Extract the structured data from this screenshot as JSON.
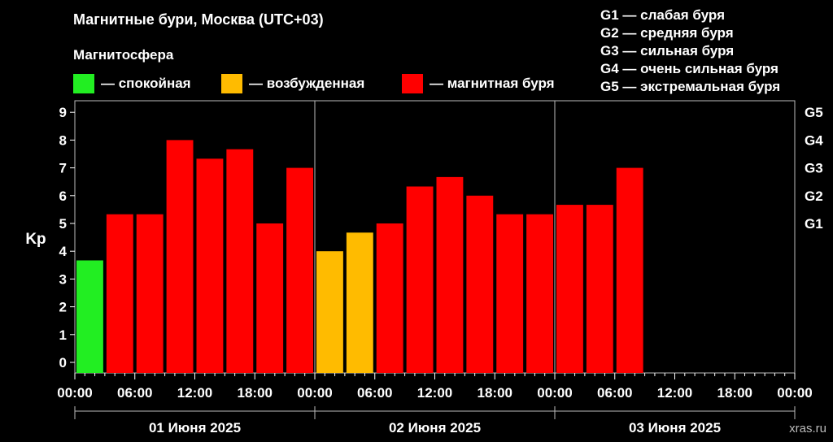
{
  "header": {
    "title": "Магнитные бури, Москва (UTC+03)",
    "subtitle": "Магнитосфера"
  },
  "legend": [
    {
      "label": "— спокойная",
      "color": "#22ee22"
    },
    {
      "label": "— возбужденная",
      "color": "#ffbb00"
    },
    {
      "label": "— магнитная буря",
      "color": "#ff0000"
    }
  ],
  "g_legend": [
    "G1 — слабая буря",
    "G2 — средняя буря",
    "G3 — сильная буря",
    "G4 — очень сильная буря",
    "G5 — экстремальная буря"
  ],
  "watermark": "xras.ru",
  "chart_data": {
    "type": "bar",
    "ylabel": "Kp",
    "ylim": [
      0,
      9
    ],
    "y_ticks": [
      "0",
      "1",
      "2",
      "3",
      "4",
      "5",
      "6",
      "7",
      "8",
      "9"
    ],
    "g_ticks": [
      {
        "label": "G1",
        "kp": 5
      },
      {
        "label": "G2",
        "kp": 6
      },
      {
        "label": "G3",
        "kp": 7
      },
      {
        "label": "G4",
        "kp": 8
      },
      {
        "label": "G5",
        "kp": 9
      }
    ],
    "x_ticks": [
      "00:00",
      "06:00",
      "12:00",
      "18:00",
      "00:00",
      "06:00",
      "12:00",
      "18:00",
      "00:00",
      "06:00",
      "12:00",
      "18:00",
      "00:00"
    ],
    "days": [
      "01 Июня 2025",
      "02 Июня 2025",
      "03 Июня 2025"
    ],
    "interval_hours": 3,
    "values": [
      3.67,
      5.33,
      5.33,
      8.0,
      7.33,
      7.67,
      5.0,
      7.0,
      4.0,
      4.67,
      5.0,
      6.33,
      6.67,
      6.0,
      5.33,
      5.33,
      5.67,
      5.67,
      7.0
    ],
    "status": [
      "quiet",
      "storm",
      "storm",
      "storm",
      "storm",
      "storm",
      "storm",
      "storm",
      "active",
      "active",
      "storm",
      "storm",
      "storm",
      "storm",
      "storm",
      "storm",
      "storm",
      "storm",
      "storm"
    ],
    "colors": {
      "quiet": "#22ee22",
      "active": "#ffbb00",
      "storm": "#ff0000"
    }
  }
}
